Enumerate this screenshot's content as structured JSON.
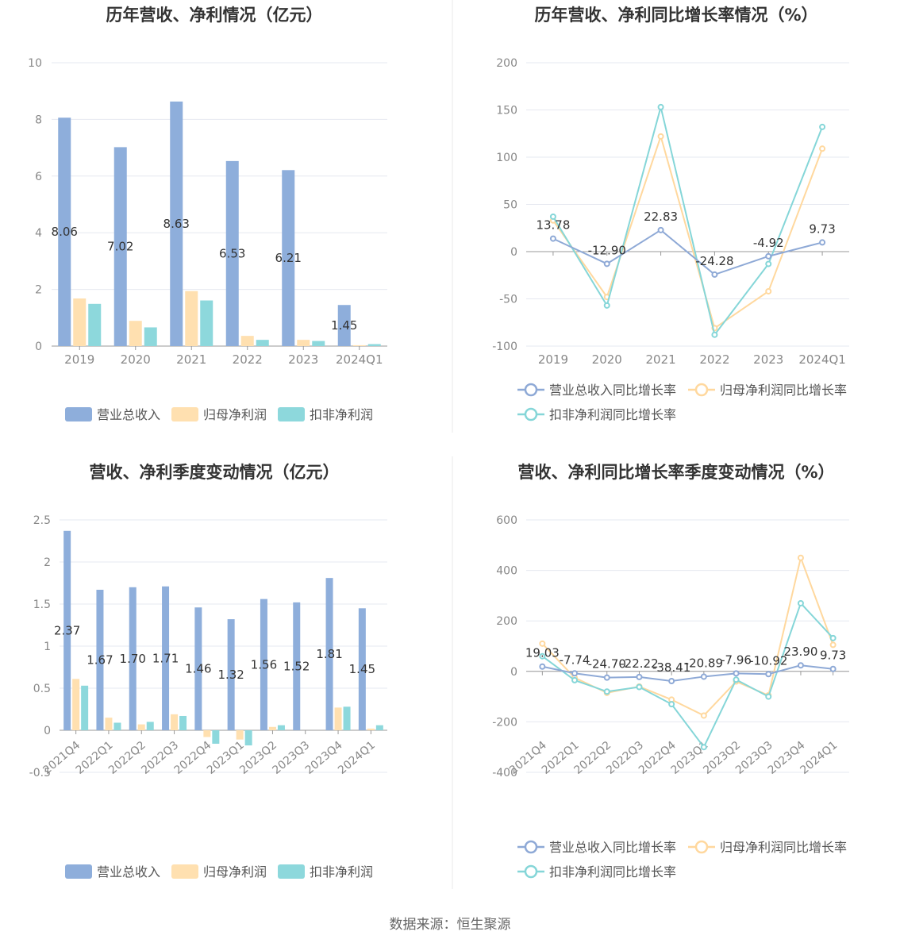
{
  "source": "数据来源：恒生聚源",
  "colors": {
    "revenue": "#8eaedb",
    "netprofit": "#ffe0b0",
    "deducted": "#8dd8dc",
    "revenue_line": "#8ea9d6",
    "netprofit_line": "#ffd89e",
    "deducted_line": "#85d6d8",
    "grid": "#e6e8f0",
    "axis": "#999999",
    "label": "#333333",
    "tick": "#888888"
  },
  "chart_data": [
    {
      "id": "c1",
      "type": "bar",
      "title": "历年营收、净利情况（亿元）",
      "categories": [
        "2019",
        "2020",
        "2021",
        "2022",
        "2023",
        "2024Q1"
      ],
      "ylim": [
        0,
        10
      ],
      "yticks": [
        0,
        2,
        4,
        6,
        8,
        10
      ],
      "ytick_labels": [
        "0",
        "2",
        "4",
        "6",
        "8",
        "10"
      ],
      "series": [
        {
          "name": "营业总收入",
          "color": "#8eaedb",
          "values": [
            8.06,
            7.02,
            8.63,
            6.53,
            6.21,
            1.45
          ],
          "labels": [
            "8.06",
            "7.02",
            "8.63",
            "6.53",
            "6.21",
            "1.45"
          ]
        },
        {
          "name": "归母净利润",
          "color": "#ffe0b0",
          "values": [
            1.68,
            0.89,
            1.94,
            0.36,
            0.22,
            0.03
          ]
        },
        {
          "name": "扣非净利润",
          "color": "#8dd8dc",
          "values": [
            1.49,
            0.66,
            1.61,
            0.22,
            0.18,
            0.07
          ]
        }
      ],
      "legend": "bottom",
      "grid": true
    },
    {
      "id": "c2",
      "type": "line",
      "title": "历年营收、净利同比增长率情况（%）",
      "categories": [
        "2019",
        "2020",
        "2021",
        "2022",
        "2023",
        "2024Q1"
      ],
      "ylim": [
        -100,
        200
      ],
      "yticks": [
        -100,
        -50,
        0,
        50,
        100,
        150,
        200
      ],
      "ytick_labels": [
        "-100",
        "-50",
        "0",
        "50",
        "100",
        "150",
        "200"
      ],
      "series": [
        {
          "name": "营业总收入同比增长率",
          "color": "#8ea9d6",
          "values": [
            13.78,
            -12.9,
            22.83,
            -24.28,
            -4.92,
            9.73
          ],
          "labels": [
            "13.78",
            "-12.90",
            "22.83",
            "-24.28",
            "-4.92",
            "9.73"
          ]
        },
        {
          "name": "归母净利润同比增长率",
          "color": "#ffd89e",
          "values": [
            33,
            -48,
            122,
            -81,
            -42,
            109
          ]
        },
        {
          "name": "扣非净利润同比增长率",
          "color": "#85d6d8",
          "values": [
            37,
            -57,
            153,
            -88,
            -13,
            132
          ]
        }
      ],
      "legend": "bottom",
      "grid": true
    },
    {
      "id": "c3",
      "type": "bar",
      "title": "营收、净利季度变动情况（亿元）",
      "categories": [
        "2021Q4",
        "2022Q1",
        "2022Q2",
        "2022Q3",
        "2022Q4",
        "2023Q1",
        "2023Q2",
        "2023Q3",
        "2023Q4",
        "2024Q1"
      ],
      "ylim": [
        -0.5,
        2.5
      ],
      "yticks": [
        -0.5,
        0,
        0.5,
        1,
        1.5,
        2,
        2.5
      ],
      "ytick_labels": [
        "-0.5",
        "0",
        "0.5",
        "1",
        "1.5",
        "2",
        "2.5"
      ],
      "series": [
        {
          "name": "营业总收入",
          "color": "#8eaedb",
          "values": [
            2.37,
            1.67,
            1.7,
            1.71,
            1.46,
            1.32,
            1.56,
            1.52,
            1.81,
            1.45
          ],
          "labels": [
            "2.37",
            "1.67",
            "1.70",
            "1.71",
            "1.46",
            "1.32",
            "1.56",
            "1.52",
            "1.81",
            "1.45"
          ]
        },
        {
          "name": "归母净利润",
          "color": "#ffe0b0",
          "values": [
            0.61,
            0.15,
            0.07,
            0.19,
            -0.08,
            -0.11,
            0.04,
            0.0,
            0.27,
            0.02
          ]
        },
        {
          "name": "扣非净利润",
          "color": "#8dd8dc",
          "values": [
            0.53,
            0.09,
            0.1,
            0.17,
            -0.16,
            -0.18,
            0.06,
            0.0,
            0.28,
            0.06
          ]
        }
      ],
      "legend": "bottom",
      "grid": true
    },
    {
      "id": "c4",
      "type": "line",
      "title": "营收、净利同比增长率季度变动情况（%）",
      "categories": [
        "2021Q4",
        "2022Q1",
        "2022Q2",
        "2022Q3",
        "2022Q4",
        "2023Q1",
        "2023Q2",
        "2023Q3",
        "2023Q4",
        "2024Q1"
      ],
      "ylim": [
        -400,
        600
      ],
      "yticks": [
        -400,
        -200,
        0,
        200,
        400,
        600
      ],
      "ytick_labels": [
        "-400",
        "-200",
        "0",
        "200",
        "400",
        "600"
      ],
      "series": [
        {
          "name": "营业总收入同比增长率",
          "color": "#8ea9d6",
          "values": [
            19.03,
            -7.74,
            -24.7,
            -22.22,
            -38.41,
            -20.89,
            -7.96,
            -10.92,
            23.9,
            9.73
          ],
          "labels": [
            "19.03",
            "-7.74",
            "-24.70",
            "-22.22",
            "-38.41",
            "-20.89",
            "-7.96",
            "-10.92",
            "23.90",
            "9.73"
          ]
        },
        {
          "name": "归母净利润同比增长率",
          "color": "#ffd89e",
          "values": [
            110,
            -25,
            -85,
            -60,
            -112,
            -175,
            -40,
            -95,
            450,
            105
          ]
        },
        {
          "name": "扣非净利润同比增长率",
          "color": "#85d6d8",
          "values": [
            60,
            -35,
            -80,
            -62,
            -130,
            -300,
            -33,
            -100,
            270,
            132
          ]
        }
      ],
      "legend": "bottom",
      "grid": true
    }
  ]
}
